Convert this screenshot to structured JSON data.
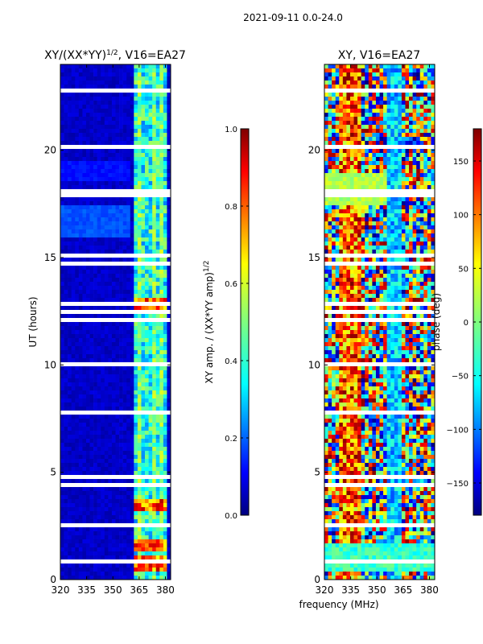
{
  "figure": {
    "suptitle": "2021-09-11 0.0-24.0",
    "xlabel": "frequency (MHz)",
    "ylabel": "UT (hours)"
  },
  "colors": {
    "jet": [
      "#00007f",
      "#0000ff",
      "#007fff",
      "#00ffff",
      "#7fff7f",
      "#ffff00",
      "#ff7f00",
      "#ff0000",
      "#7f0000"
    ]
  },
  "chart_data": [
    {
      "type": "heatmap",
      "title_main": "XY/(XX*YY)",
      "title_sup": "1/2",
      "title_rest": ", V16=EA27",
      "xlabel": "frequency (MHz)",
      "ylabel": "UT (hours)",
      "xlim": [
        320,
        383
      ],
      "ylim": [
        0,
        24
      ],
      "xticks": [
        320,
        335,
        350,
        365,
        380
      ],
      "yticks": [
        0,
        5,
        10,
        15,
        20
      ],
      "colormap": "jet",
      "colorbar": {
        "label": "XY amp. / (XX*YY amp)",
        "label_sup": "1/2",
        "range": [
          0.0,
          1.0
        ],
        "ticks": [
          "0.0",
          "0.2",
          "0.4",
          "0.6",
          "0.8",
          "1.0"
        ]
      },
      "description": "Mostly low normalized amplitude (~0.05) across 320-360 MHz; elevated amplitude (0.3-0.9) in narrow channels near 360-380 MHz; flagged (white) time rows throughout."
    },
    {
      "type": "heatmap",
      "title": "XY, V16=EA27",
      "xlabel": "frequency (MHz)",
      "xlim": [
        320,
        383
      ],
      "ylim": [
        0,
        24
      ],
      "xticks": [
        320,
        335,
        350,
        365,
        380
      ],
      "yticks": [
        0,
        5,
        10,
        15,
        20
      ],
      "colormap": "jet",
      "colorbar": {
        "label": "phase (deg)",
        "range": [
          -180,
          180
        ],
        "ticks": [
          "−150",
          "−100",
          "−50",
          "0",
          "50",
          "100",
          "150"
        ]
      },
      "description": "Noisy phase spanning full -180..180 deg range with many flagged rows; stronger red/yellow structure near 330-340 MHz."
    }
  ]
}
